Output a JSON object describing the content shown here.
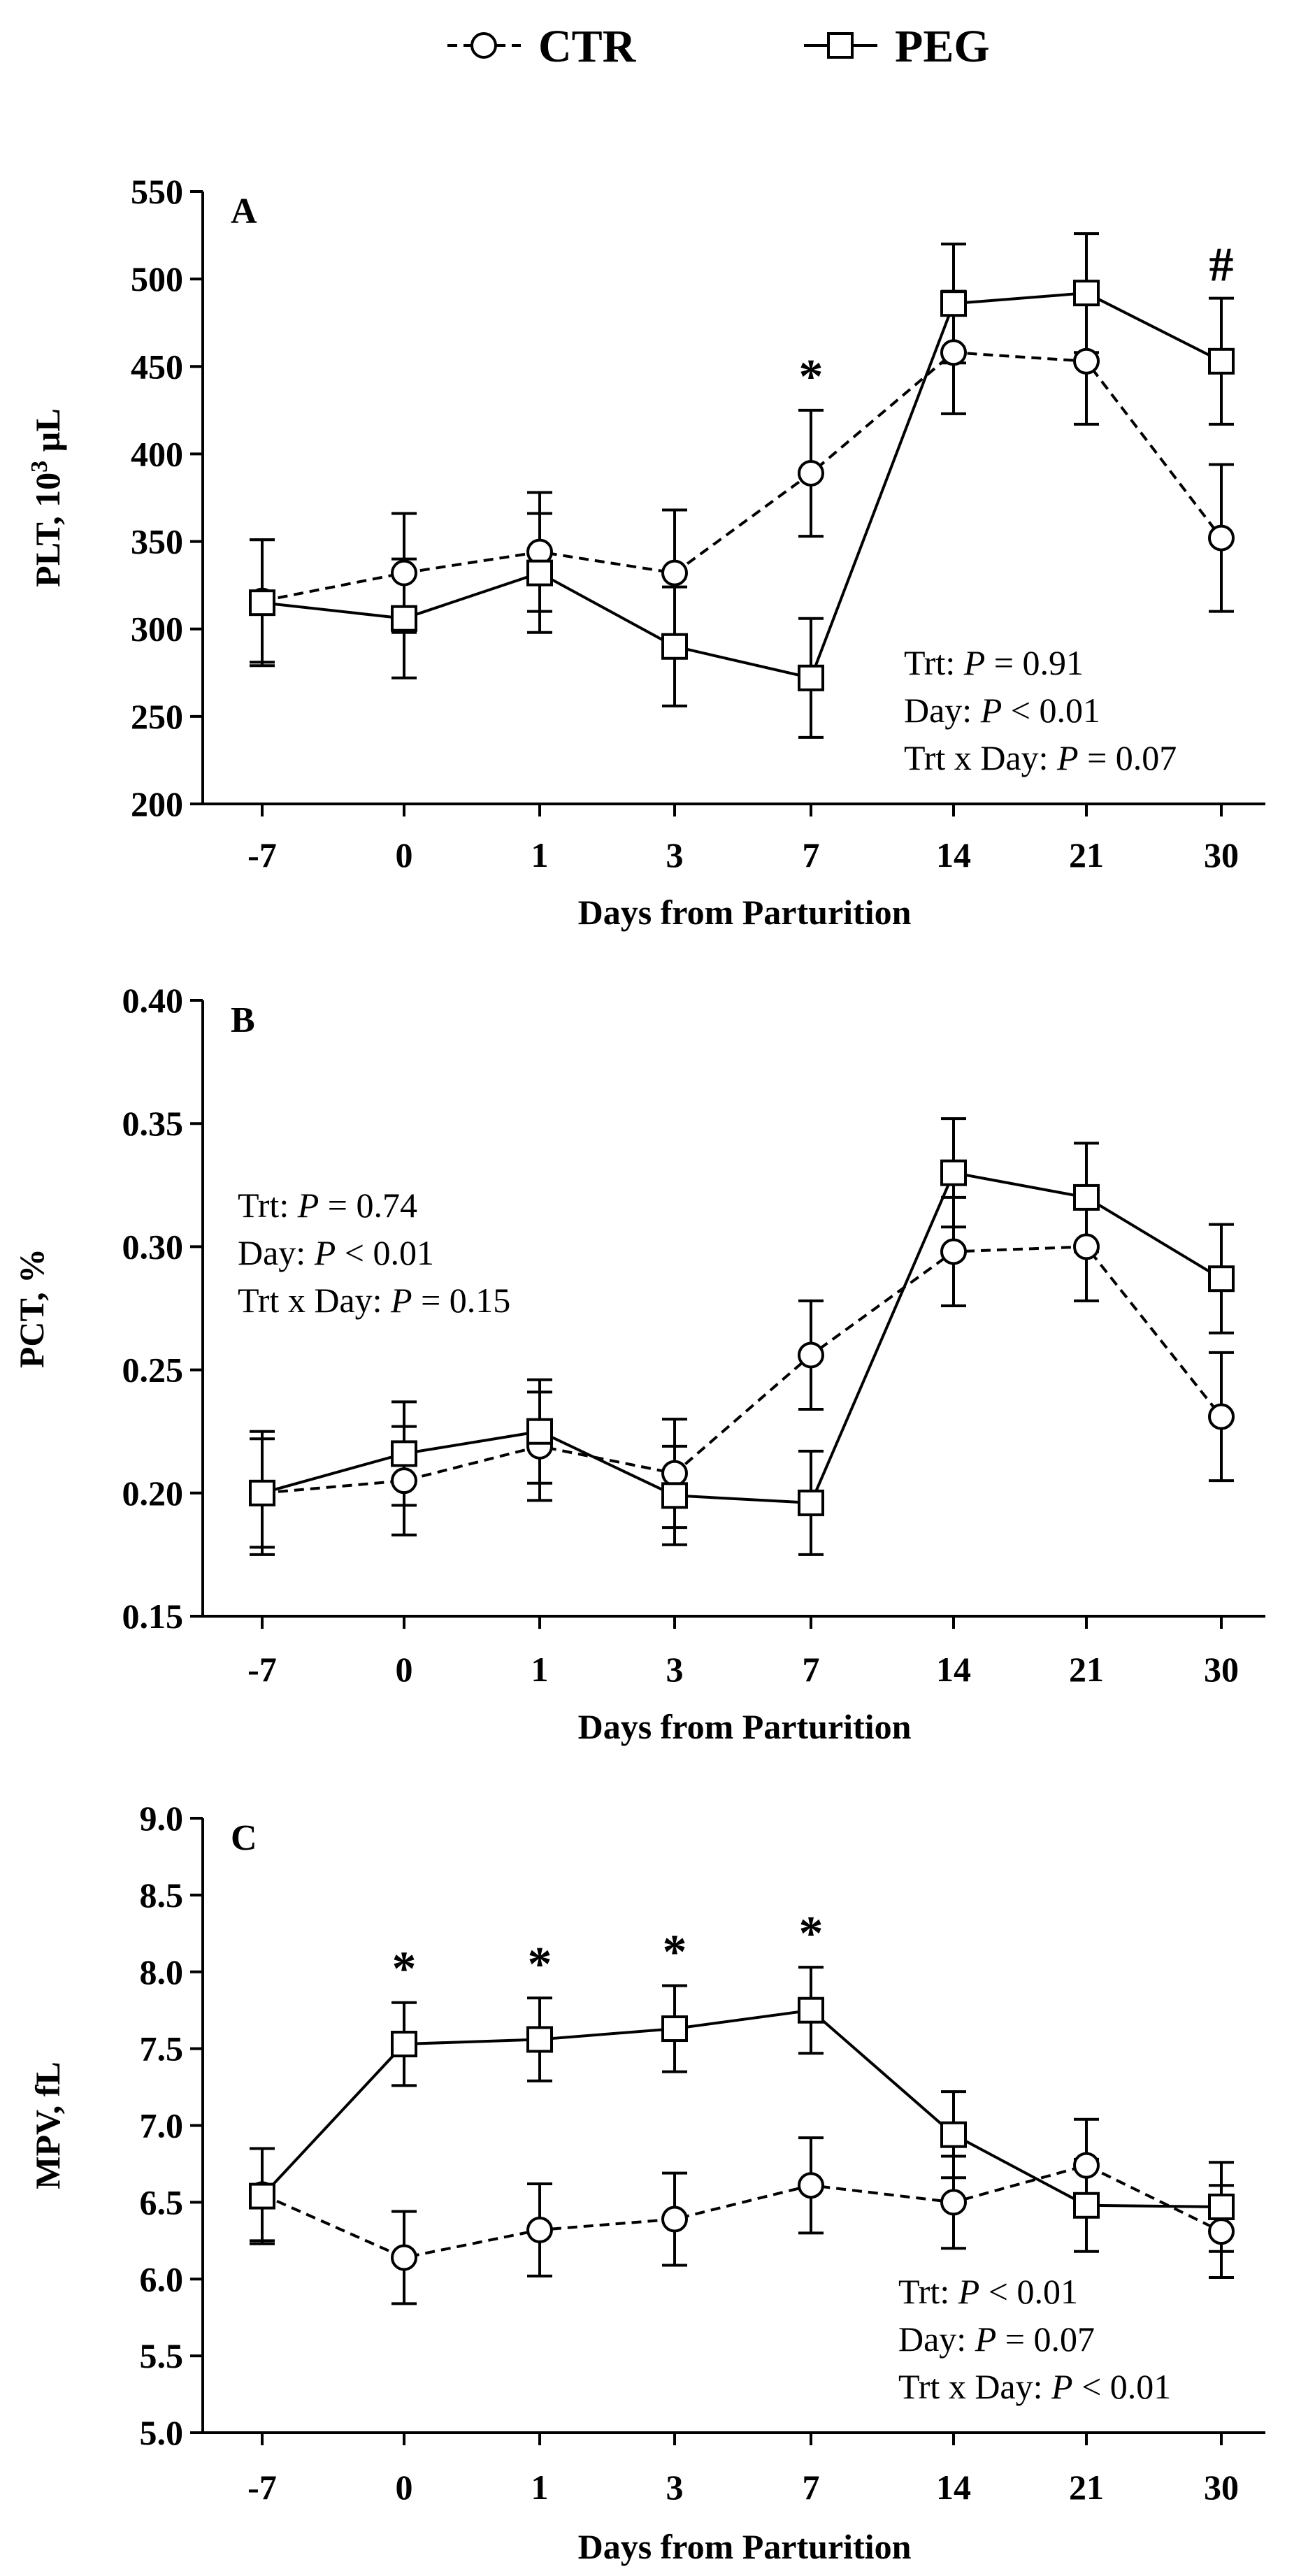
{
  "legend": {
    "items": [
      {
        "label": "CTR",
        "marker": "circle",
        "line": "dashed"
      },
      {
        "label": "PEG",
        "marker": "square",
        "line": "solid"
      }
    ]
  },
  "chart_data": [
    {
      "type": "line",
      "panel": "A",
      "categories": [
        "-7",
        "0",
        "1",
        "3",
        "7",
        "14",
        "21",
        "30"
      ],
      "xlabel": "Days from Parturition",
      "ylabel": "PLT, 10",
      "ylabel_sup": "3",
      "ylabel_unit": " µL",
      "ylim": [
        200,
        550
      ],
      "yticks": [
        200,
        250,
        300,
        350,
        400,
        450,
        500,
        550
      ],
      "ytick_labels": [
        "200",
        "250",
        "300",
        "350",
        "400",
        "450",
        "500",
        "550"
      ],
      "series": [
        {
          "name": "CTR",
          "values": [
            316,
            332,
            344,
            332,
            389,
            458,
            453,
            352
          ],
          "errors": [
            35,
            34,
            34,
            36,
            36,
            35,
            36,
            42
          ]
        },
        {
          "name": "PEG",
          "values": [
            315,
            306,
            332,
            290,
            272,
            486,
            492,
            453
          ],
          "errors": [
            36,
            34,
            34,
            34,
            34,
            34,
            34,
            36
          ]
        }
      ],
      "annotations": [
        {
          "category": "7",
          "text": "*"
        },
        {
          "category": "30",
          "text": "#"
        }
      ],
      "stats": {
        "position": "bottom-right",
        "lines": [
          {
            "prefix": "Trt: ",
            "italic": "P",
            "suffix": " = 0.91"
          },
          {
            "prefix": "Day: ",
            "italic": "P",
            "suffix": " < 0.01"
          },
          {
            "prefix": "Trt x Day: ",
            "italic": "P",
            "suffix": " = 0.07"
          }
        ]
      }
    },
    {
      "type": "line",
      "panel": "B",
      "categories": [
        "-7",
        "0",
        "1",
        "3",
        "7",
        "14",
        "21",
        "30"
      ],
      "xlabel": "Days from Parturition",
      "ylabel": "PCT, %",
      "ylim": [
        0.15,
        0.4
      ],
      "yticks": [
        0.15,
        0.2,
        0.25,
        0.3,
        0.35,
        0.4
      ],
      "ytick_labels": [
        "0.15",
        "0.20",
        "0.25",
        "0.30",
        "0.35",
        "0.40"
      ],
      "series": [
        {
          "name": "CTR",
          "values": [
            0.2,
            0.205,
            0.219,
            0.208,
            0.256,
            0.298,
            0.3,
            0.231
          ],
          "errors": [
            0.022,
            0.022,
            0.022,
            0.022,
            0.022,
            0.022,
            0.022,
            0.026
          ]
        },
        {
          "name": "PEG",
          "values": [
            0.2,
            0.216,
            0.225,
            0.199,
            0.196,
            0.33,
            0.32,
            0.287
          ],
          "errors": [
            0.025,
            0.021,
            0.021,
            0.02,
            0.021,
            0.022,
            0.022,
            0.022
          ]
        }
      ],
      "annotations": [],
      "stats": {
        "position": "top-left",
        "lines": [
          {
            "prefix": "Trt: ",
            "italic": "P",
            "suffix": " = 0.74"
          },
          {
            "prefix": "Day: ",
            "italic": "P",
            "suffix": " < 0.01"
          },
          {
            "prefix": "Trt x Day: ",
            "italic": "P",
            "suffix": " = 0.15"
          }
        ]
      }
    },
    {
      "type": "line",
      "panel": "C",
      "categories": [
        "-7",
        "0",
        "1",
        "3",
        "7",
        "14",
        "21",
        "30"
      ],
      "xlabel": "Days from Parturition",
      "ylabel": "MPV, fL",
      "ylim": [
        5.0,
        9.0
      ],
      "yticks": [
        5.0,
        5.5,
        6.0,
        6.5,
        7.0,
        7.5,
        8.0,
        8.5,
        9.0
      ],
      "ytick_labels": [
        "5.0",
        "5.5",
        "6.0",
        "6.5",
        "7.0",
        "7.5",
        "8.0",
        "8.5",
        "9.0"
      ],
      "series": [
        {
          "name": "CTR",
          "values": [
            6.55,
            6.14,
            6.32,
            6.39,
            6.61,
            6.5,
            6.74,
            6.31
          ],
          "errors": [
            0.3,
            0.3,
            0.3,
            0.3,
            0.31,
            0.3,
            0.3,
            0.3
          ]
        },
        {
          "name": "PEG",
          "values": [
            6.54,
            7.53,
            7.56,
            7.63,
            7.75,
            6.94,
            6.48,
            6.47
          ],
          "errors": [
            0.31,
            0.27,
            0.27,
            0.28,
            0.28,
            0.28,
            0.3,
            0.29
          ]
        }
      ],
      "annotations": [
        {
          "category": "0",
          "text": "*"
        },
        {
          "category": "1",
          "text": "*"
        },
        {
          "category": "3",
          "text": "*"
        },
        {
          "category": "7",
          "text": "*"
        }
      ],
      "stats": {
        "position": "bottom-right",
        "lines": [
          {
            "prefix": "Trt: ",
            "italic": "P",
            "suffix": " < 0.01"
          },
          {
            "prefix": "Day: ",
            "italic": "P",
            "suffix": " = 0.07"
          },
          {
            "prefix": "Trt x Day: ",
            "italic": "P",
            "suffix": " < 0.01"
          }
        ]
      }
    }
  ]
}
